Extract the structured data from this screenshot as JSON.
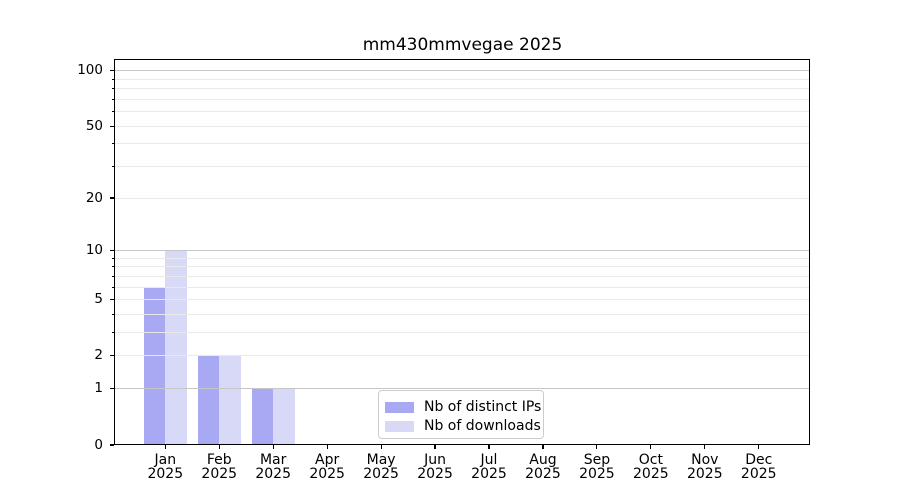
{
  "chart_data": {
    "type": "bar",
    "title": "mm430mmvegae 2025",
    "categories": [
      "Jan",
      "Feb",
      "Mar",
      "Apr",
      "May",
      "Jun",
      "Jul",
      "Aug",
      "Sep",
      "Oct",
      "Nov",
      "Dec"
    ],
    "x_year_line": "2025",
    "series": [
      {
        "name": "Nb of distinct IPs",
        "color": "#a9a9f3",
        "values": [
          6,
          2,
          1,
          0,
          0,
          0,
          0,
          0,
          0,
          0,
          0,
          0
        ]
      },
      {
        "name": "Nb of downloads",
        "color": "#d8d8f7",
        "values": [
          10,
          2,
          1,
          0,
          0,
          0,
          0,
          0,
          0,
          0,
          0,
          0
        ]
      }
    ],
    "y_axis": {
      "scale": "log1p",
      "range": [
        0,
        115
      ],
      "tick_values": [
        0,
        1,
        2,
        5,
        10,
        20,
        50,
        100
      ],
      "tick_labels": [
        "0",
        "1",
        "2",
        "5",
        "10",
        "20",
        "50",
        "100"
      ],
      "major_grid_values": [
        1,
        10,
        100
      ],
      "minor_grid_values": [
        2,
        3,
        4,
        5,
        6,
        7,
        8,
        9,
        20,
        30,
        40,
        50,
        60,
        70,
        80,
        90
      ],
      "minor_tick_values": [
        3,
        4,
        6,
        7,
        8,
        9,
        30,
        40,
        60,
        70,
        80,
        90
      ]
    },
    "grid": "on",
    "legend_position": "lower-center",
    "colors": {
      "grid_major": "#c6c6c6",
      "grid_minor": "#e9e9e9",
      "spine": "#000000",
      "text": "#000000",
      "background": "#ffffff",
      "legend_border": "#cccccc"
    }
  }
}
